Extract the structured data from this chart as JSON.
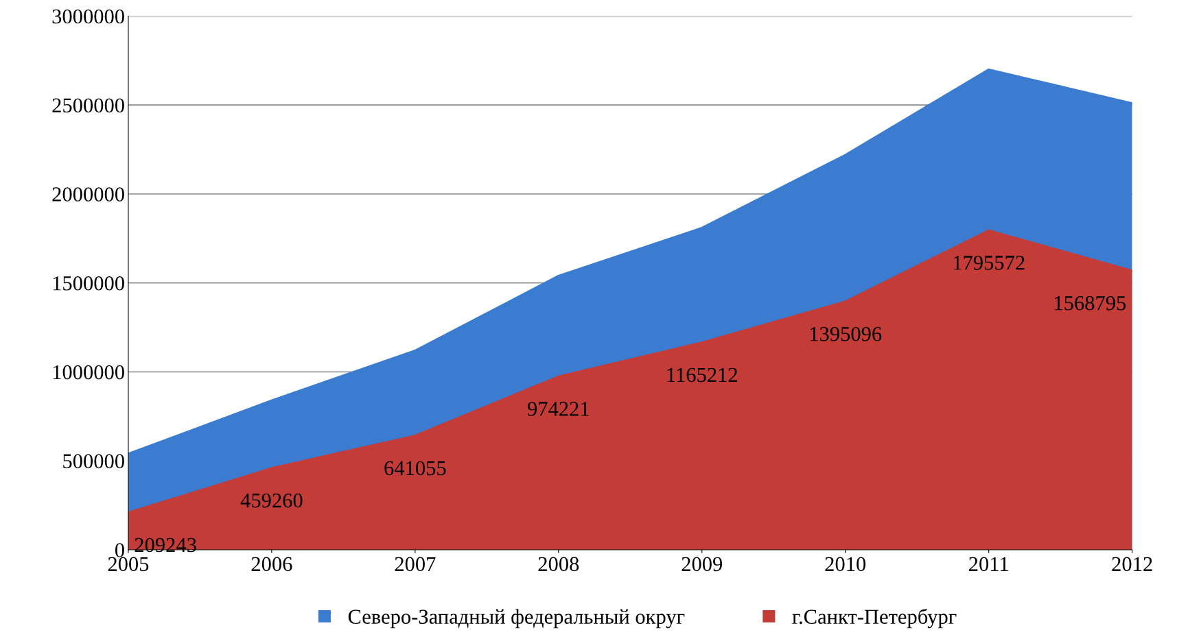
{
  "chart_data": {
    "type": "area",
    "x": [
      2005,
      2006,
      2007,
      2008,
      2009,
      2010,
      2011,
      2012
    ],
    "xlim": [
      2005,
      2012
    ],
    "xticks": [
      2005,
      2006,
      2007,
      2008,
      2009,
      2010,
      2011,
      2012
    ],
    "ylim": [
      0,
      3000000
    ],
    "yticks": [
      0,
      500000,
      1000000,
      1500000,
      2000000,
      2500000,
      3000000
    ],
    "grid": "y",
    "legend": "bottom",
    "series": [
      {
        "name": "Северо-Западный федеральный округ",
        "color": "#3b7cd0",
        "values": [
          540000,
          840000,
          1120000,
          1540000,
          1810000,
          2220000,
          2700000,
          2510000
        ]
      },
      {
        "name": "г.Санкт-Петербург",
        "color": "#c43c38",
        "values": [
          209243,
          459260,
          641055,
          974221,
          1165212,
          1395096,
          1795572,
          1568795
        ],
        "value_labels": [
          "209243",
          "459260",
          "641055",
          "974221",
          "1165212",
          "1395096",
          "1795572",
          "1568795"
        ]
      }
    ]
  }
}
